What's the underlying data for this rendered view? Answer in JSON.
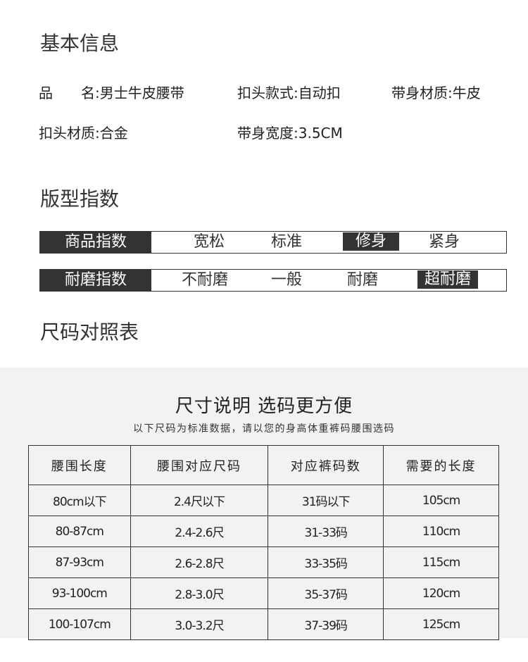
{
  "basic": {
    "title": "基本信息",
    "items": [
      "品　　名:男士牛皮腰带",
      "扣头款式:自动扣",
      "带身材质:牛皮",
      "扣头材质:合金",
      "带身宽度:3.5CM"
    ]
  },
  "fit": {
    "title": "版型指数",
    "rows": [
      {
        "label": "商品指数",
        "options": [
          "宽松",
          "标准",
          "修身",
          "紧身"
        ],
        "selected": "修身"
      },
      {
        "label": "耐磨指数",
        "options": [
          "不耐磨",
          "一般",
          "耐磨",
          "超耐磨"
        ],
        "selected": "超耐磨"
      }
    ]
  },
  "size": {
    "title": "尺码对照表",
    "banner_title": "尺寸说明 选码更方便",
    "banner_subtitle": "以下尺码为标准数据，请以您的身高体重裤码腰围选码",
    "headers": [
      "腰围长度",
      "腰围对应尺码",
      "对应裤码数",
      "需要的长度"
    ],
    "rows": [
      [
        "80cm以下",
        "2.4尺以下",
        "31码以下",
        "105cm"
      ],
      [
        "80-87cm",
        "2.4-2.6尺",
        "31-33码",
        "110cm"
      ],
      [
        "87-93cm",
        "2.6-2.8尺",
        "33-35码",
        "115cm"
      ],
      [
        "93-100cm",
        "2.8-3.0尺",
        "35-37码",
        "120cm"
      ],
      [
        "100-107cm",
        "3.0-3.2尺",
        "37-39码",
        "125cm"
      ]
    ]
  }
}
